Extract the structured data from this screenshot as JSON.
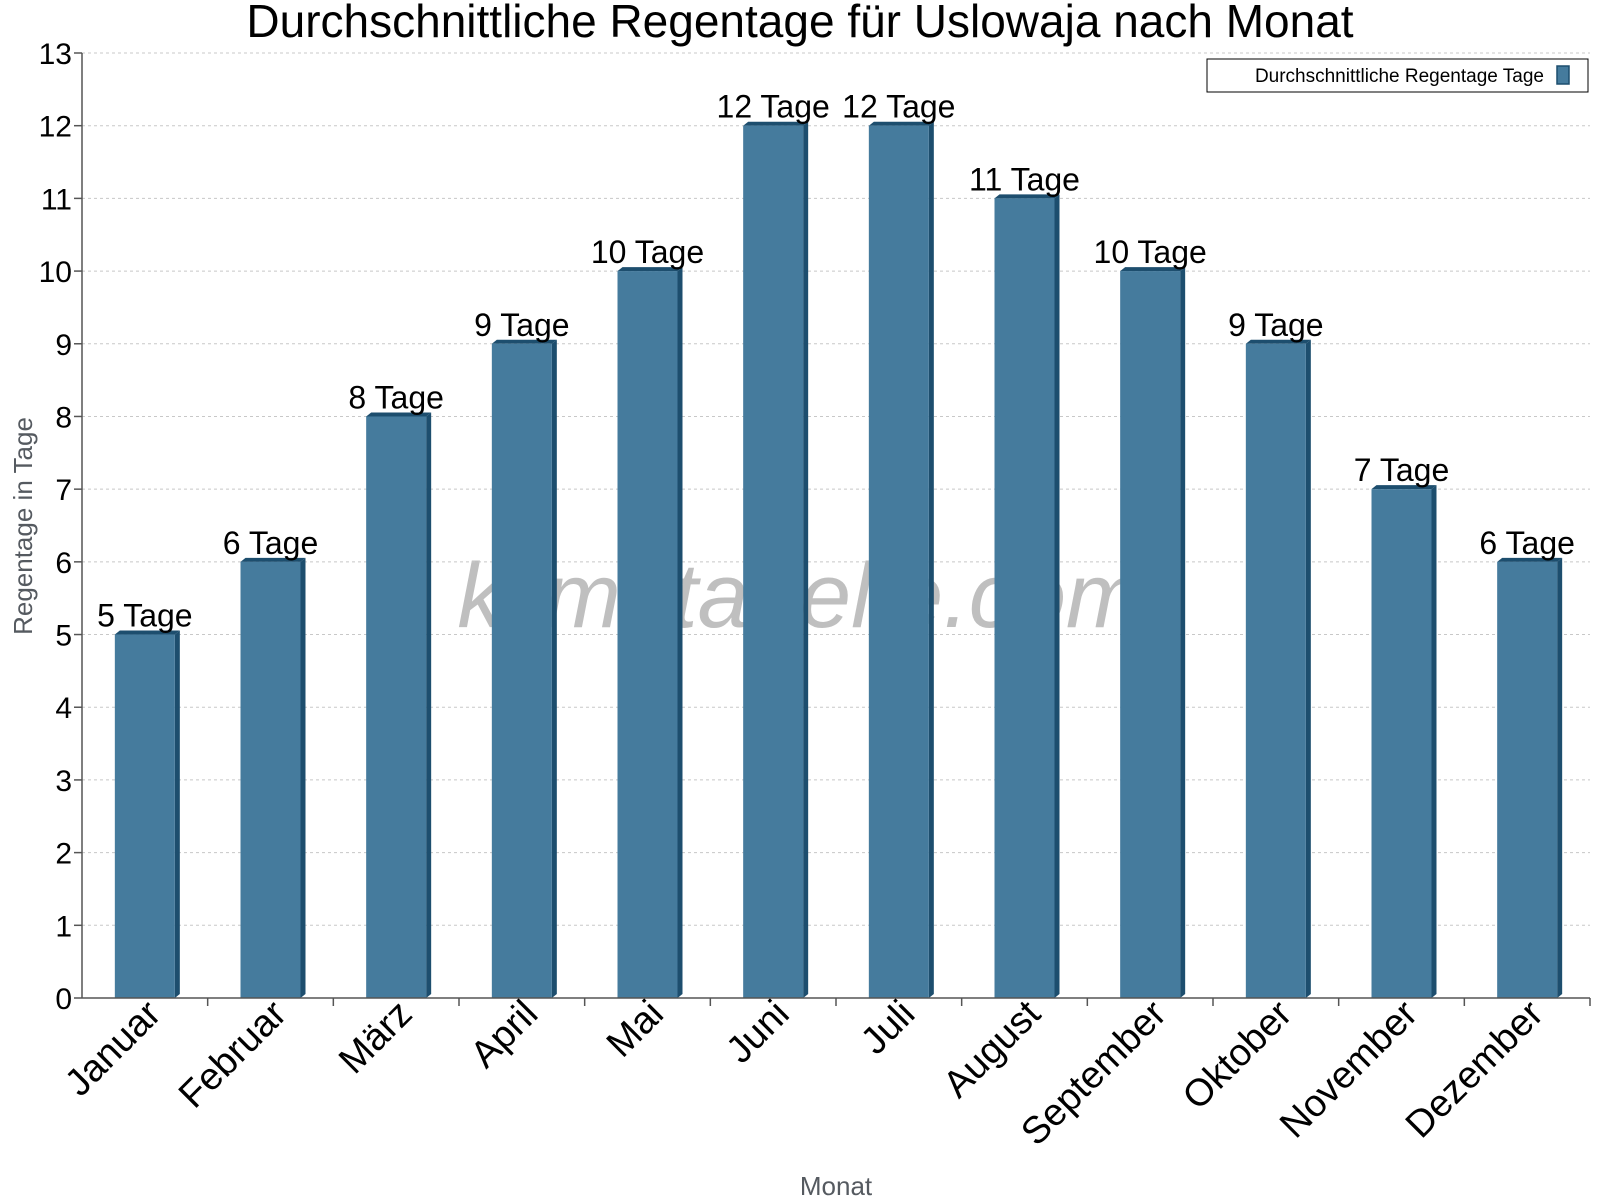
{
  "chart_data": {
    "type": "bar",
    "title": "Durchschnittliche Regentage für Uslowaja nach Monat",
    "xlabel": "Monat",
    "ylabel": "Regentage in Tage",
    "ylim": [
      0,
      13
    ],
    "yticks": [
      "0",
      "1",
      "2",
      "3",
      "4",
      "5",
      "6",
      "7",
      "8",
      "9",
      "10",
      "11",
      "12",
      "13"
    ],
    "categories": [
      "Januar",
      "Februar",
      "März",
      "April",
      "Mai",
      "Juni",
      "Juli",
      "August",
      "September",
      "Oktober",
      "November",
      "Dezember"
    ],
    "series": [
      {
        "name": "Durchschnittliche Regentage Tage",
        "values": [
          5,
          6,
          8,
          9,
          10,
          12,
          12,
          11,
          10,
          9,
          7,
          6
        ],
        "labels": [
          "5 Tage",
          "6 Tage",
          "8 Tage",
          "9 Tage",
          "10 Tage",
          "12 Tage",
          "12 Tage",
          "11 Tage",
          "10 Tage",
          "9 Tage",
          "7 Tage",
          "6 Tage"
        ]
      }
    ],
    "grid": true,
    "legend_position": "top-right",
    "watermark": "klimatabelle.com",
    "colors": {
      "bar": "#457b9d",
      "bar_side": "#1d4e6e",
      "grid": "#c8c8c8",
      "axis": "#555555"
    }
  }
}
